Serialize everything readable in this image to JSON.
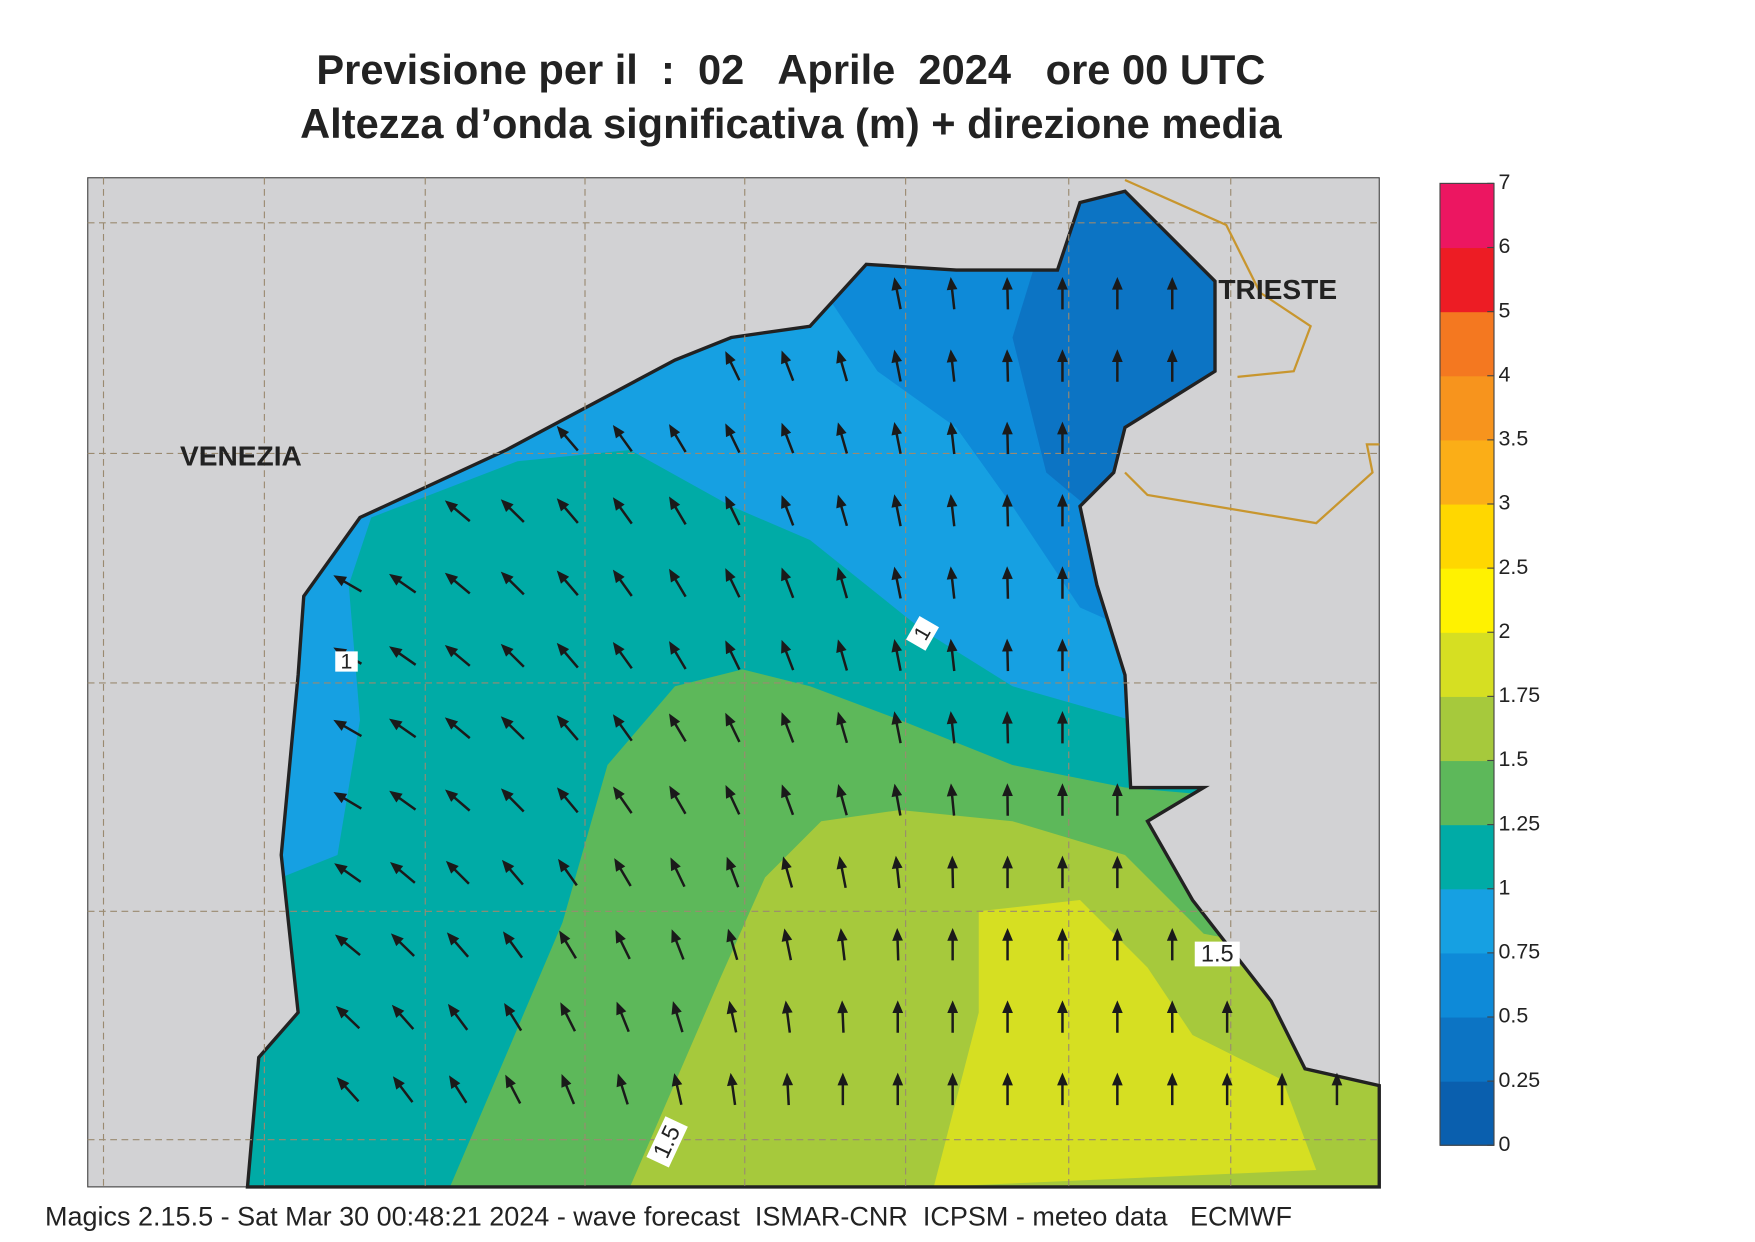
{
  "header": {
    "title": "Previsione per il  :  02   Aprile  2024   ore 00 UTC",
    "subtitle": "Altezza d’onda significativa (m) + direzione media"
  },
  "map": {
    "places": [
      "VENEZIA",
      "TRIESTE"
    ],
    "contour_labels": [
      1,
      1,
      1.5,
      1.5
    ]
  },
  "colorbar": {
    "ticks": [
      0,
      0.25,
      0.5,
      0.75,
      1,
      1.25,
      1.5,
      1.75,
      2,
      2.5,
      3,
      3.5,
      4,
      5,
      6,
      7
    ],
    "colors": [
      "#0a5fae",
      "#0c74c4",
      "#0e8ad8",
      "#16a0e2",
      "#00aba6",
      "#5db85a",
      "#a6c93c",
      "#d6df22",
      "#fff200",
      "#ffd700",
      "#fbae17",
      "#f7941d",
      "#f47820",
      "#ed1c24",
      "#ec1661"
    ]
  },
  "footer": "Magics 2.15.5 - Sat Mar 30 00:48:21 2024 - wave forecast  ISMAR-CNR  ICPSM - meteo data   ECMWF"
}
